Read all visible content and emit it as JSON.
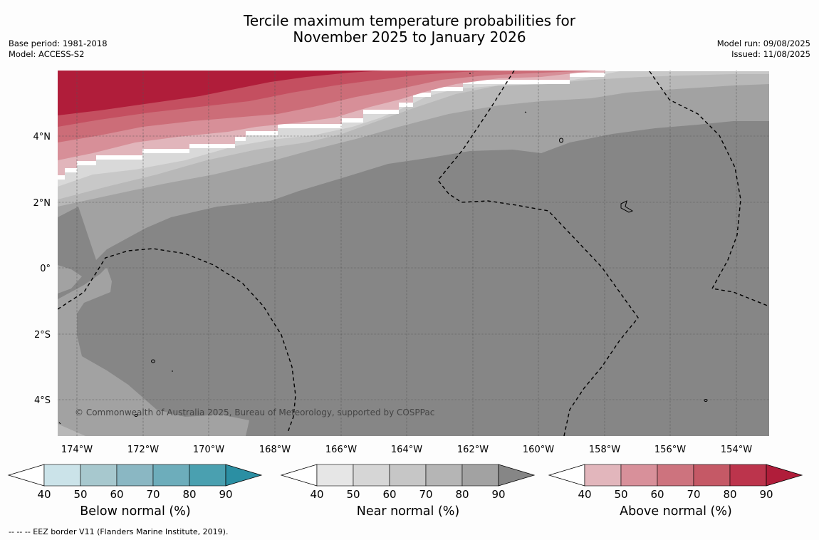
{
  "title": {
    "line1": "Tercile maximum temperature probabilities for",
    "line2": "November 2025 to January 2026"
  },
  "meta_left": {
    "base_period": "Base period: 1981-2018",
    "model": "Model: ACCESS-S2"
  },
  "meta_right": {
    "model_run": "Model run: 09/08/2025",
    "issued": "Issued: 11/08/2025"
  },
  "map": {
    "lon_labels": [
      "174°W",
      "172°W",
      "170°W",
      "168°W",
      "166°W",
      "164°W",
      "162°W",
      "160°W",
      "158°W",
      "156°W",
      "154°W"
    ],
    "lat_labels": [
      "4°N",
      "2°N",
      "0°",
      "2°S",
      "4°S"
    ],
    "copyright": "© Commonwealth of Australia 2025, Bureau of Meteorology, supported by COSPPac",
    "colors": {
      "ocean_land_grey_90": "#868686",
      "near_80": "#a2a2a2",
      "near_70": "#b8b8b8",
      "near_60": "#c8c8c8",
      "near_50": "#d9d9d9",
      "above_50": "#e1b5bb",
      "above_60": "#d78f98",
      "above_70": "#cc6d78",
      "above_80": "#c44f60",
      "above_90": "#b01d3a"
    }
  },
  "colorbars": [
    {
      "id": "below",
      "title": "Below normal (%)",
      "ticks": [
        "40",
        "50",
        "60",
        "70",
        "80",
        "90"
      ],
      "colors": [
        "#ffffff",
        "#cbe3e9",
        "#a7c8ce",
        "#8ab7c3",
        "#6dadbb",
        "#4aa0b0",
        "#2b8fa3"
      ]
    },
    {
      "id": "near",
      "title": "Near normal (%)",
      "ticks": [
        "40",
        "50",
        "60",
        "70",
        "80",
        "90"
      ],
      "colors": [
        "#ffffff",
        "#e6e6e6",
        "#d6d6d6",
        "#c6c6c6",
        "#b5b5b5",
        "#a2a2a2",
        "#868686"
      ]
    },
    {
      "id": "above",
      "title": "Above normal (%)",
      "ticks": [
        "40",
        "50",
        "60",
        "70",
        "80",
        "90"
      ],
      "colors": [
        "#ffffff",
        "#e2b6bc",
        "#d8909a",
        "#cd737e",
        "#c55966",
        "#bc344c",
        "#b01d3a"
      ]
    }
  ],
  "footer": "-- -- -- EEZ border V11 (Flanders Marine Institute, 2019)."
}
